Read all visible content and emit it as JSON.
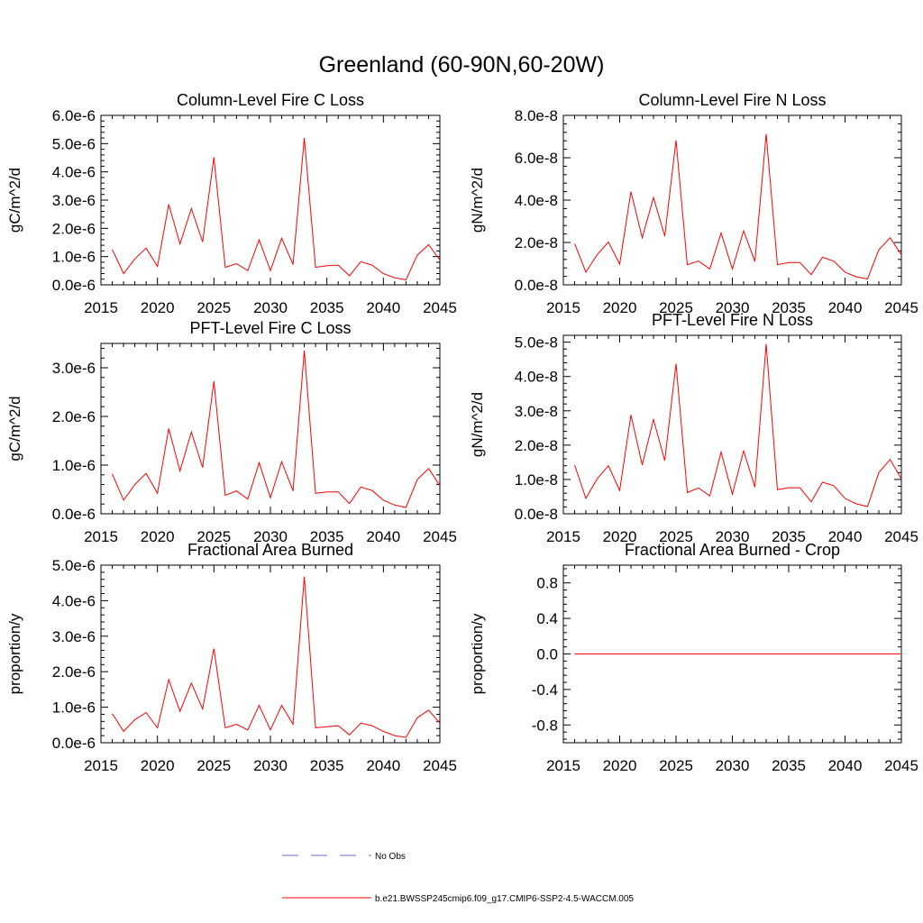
{
  "page": {
    "title": "Greenland (60-90N,60-20W)"
  },
  "chart_data": [
    {
      "type": "line",
      "title": "Column-Level Fire C Loss",
      "ylabel": "gC/m^2/d",
      "xlabel": "",
      "xlim": [
        2015,
        2045
      ],
      "ylim": [
        0,
        6e-06
      ],
      "x_ticks": [
        2015,
        2020,
        2025,
        2030,
        2035,
        2040,
        2045
      ],
      "x_tick_labels": [
        "2015",
        "2020",
        "2025",
        "2030",
        "2035",
        "2040",
        "2045"
      ],
      "y_ticks": [
        0,
        1e-06,
        2e-06,
        3e-06,
        4e-06,
        5e-06,
        6e-06
      ],
      "y_tick_labels": [
        "0.0e-6",
        "1.0e-6",
        "2.0e-6",
        "3.0e-6",
        "4.0e-6",
        "5.0e-6",
        "6.0e-6"
      ],
      "series": [
        {
          "name": "b.e21.BWSSP245cmip6.f09_g17.CMIP6-SSP2-4.5-WACCM.005",
          "color": "#ff0000",
          "x": [
            2016,
            2017,
            2018,
            2019,
            2020,
            2021,
            2022,
            2023,
            2024,
            2025,
            2026,
            2027,
            2028,
            2029,
            2030,
            2031,
            2032,
            2033,
            2034,
            2035,
            2036,
            2037,
            2038,
            2039,
            2040,
            2041,
            2042,
            2043,
            2044,
            2045
          ],
          "values": [
            1.25e-06,
            4e-07,
            9.2e-07,
            1.3e-06,
            6.5e-07,
            2.85e-06,
            1.45e-06,
            2.7e-06,
            1.52e-06,
            4.52e-06,
            6.2e-07,
            7.5e-07,
            5e-07,
            1.6e-06,
            5e-07,
            1.65e-06,
            7.2e-07,
            5.2e-06,
            6.2e-07,
            6.8e-07,
            7e-07,
            3.2e-07,
            8.2e-07,
            7e-07,
            4e-07,
            2.5e-07,
            1.8e-07,
            1.05e-06,
            1.42e-06,
            8.8e-07
          ]
        }
      ]
    },
    {
      "type": "line",
      "title": "Column-Level Fire N Loss",
      "ylabel": "gN/m^2/d",
      "xlabel": "",
      "xlim": [
        2015,
        2045
      ],
      "ylim": [
        0,
        8e-08
      ],
      "x_ticks": [
        2015,
        2020,
        2025,
        2030,
        2035,
        2040,
        2045
      ],
      "x_tick_labels": [
        "2015",
        "2020",
        "2025",
        "2030",
        "2035",
        "2040",
        "2045"
      ],
      "y_ticks": [
        0,
        2e-08,
        4e-08,
        6e-08,
        8e-08
      ],
      "y_tick_labels": [
        "0.0e-8",
        "2.0e-8",
        "4.0e-8",
        "6.0e-8",
        "8.0e-8"
      ],
      "series": [
        {
          "name": "b.e21.BWSSP245cmip6.f09_g17.CMIP6-SSP2-4.5-WACCM.005",
          "color": "#ff0000",
          "x": [
            2016,
            2017,
            2018,
            2019,
            2020,
            2021,
            2022,
            2023,
            2024,
            2025,
            2026,
            2027,
            2028,
            2029,
            2030,
            2031,
            2032,
            2033,
            2034,
            2035,
            2036,
            2037,
            2038,
            2039,
            2040,
            2041,
            2042,
            2043,
            2044,
            2045
          ],
          "values": [
            1.95e-08,
            6e-09,
            1.42e-08,
            2.02e-08,
            9.8e-09,
            4.4e-08,
            2.22e-08,
            4.12e-08,
            2.3e-08,
            6.82e-08,
            9.5e-09,
            1.12e-08,
            7.5e-09,
            2.45e-08,
            7.5e-09,
            2.55e-08,
            1.1e-08,
            7.12e-08,
            9.5e-09,
            1.05e-08,
            1.05e-08,
            4.8e-09,
            1.3e-08,
            1.12e-08,
            6e-09,
            3.8e-09,
            2.8e-09,
            1.65e-08,
            2.22e-08,
            1.42e-08
          ]
        }
      ]
    },
    {
      "type": "line",
      "title": "PFT-Level Fire C Loss",
      "ylabel": "gC/m^2/d",
      "xlabel": "",
      "xlim": [
        2015,
        2045
      ],
      "ylim": [
        0,
        3.5e-06
      ],
      "x_ticks": [
        2015,
        2020,
        2025,
        2030,
        2035,
        2040,
        2045
      ],
      "x_tick_labels": [
        "2015",
        "2020",
        "2025",
        "2030",
        "2035",
        "2040",
        "2045"
      ],
      "y_ticks": [
        0,
        1e-06,
        2e-06,
        3e-06
      ],
      "y_tick_labels": [
        "0.0e-6",
        "1.0e-6",
        "2.0e-6",
        "3.0e-6"
      ],
      "series": [
        {
          "name": "b.e21.BWSSP245cmip6.f09_g17.CMIP6-SSP2-4.5-WACCM.005",
          "color": "#ff0000",
          "x": [
            2016,
            2017,
            2018,
            2019,
            2020,
            2021,
            2022,
            2023,
            2024,
            2025,
            2026,
            2027,
            2028,
            2029,
            2030,
            2031,
            2032,
            2033,
            2034,
            2035,
            2036,
            2037,
            2038,
            2039,
            2040,
            2041,
            2042,
            2043,
            2044,
            2045
          ],
          "values": [
            8.2e-07,
            2.8e-07,
            6e-07,
            8.3e-07,
            4.2e-07,
            1.75e-06,
            8.8e-07,
            1.68e-06,
            9.5e-07,
            2.72e-06,
            3.8e-07,
            4.7e-07,
            3e-07,
            1.05e-06,
            3.3e-07,
            1.07e-06,
            4.7e-07,
            3.35e-06,
            4.2e-07,
            4.5e-07,
            4.5e-07,
            2.1e-07,
            5.5e-07,
            4.8e-07,
            2.8e-07,
            1.8e-07,
            1.3e-07,
            7e-07,
            9.3e-07,
            5.8e-07
          ]
        }
      ]
    },
    {
      "type": "line",
      "title": "PFT-Level Fire N Loss",
      "ylabel": "gN/m^2/d",
      "xlabel": "",
      "xlim": [
        2015,
        2045
      ],
      "ylim": [
        0,
        5.2e-08
      ],
      "x_ticks": [
        2015,
        2020,
        2025,
        2030,
        2035,
        2040,
        2045
      ],
      "x_tick_labels": [
        "2015",
        "2020",
        "2025",
        "2030",
        "2035",
        "2040",
        "2045"
      ],
      "y_ticks": [
        0,
        1e-08,
        2e-08,
        3e-08,
        4e-08,
        5e-08
      ],
      "y_tick_labels": [
        "0.0e-8",
        "1.0e-8",
        "2.0e-8",
        "3.0e-8",
        "4.0e-8",
        "5.0e-8"
      ],
      "series": [
        {
          "name": "b.e21.BWSSP245cmip6.f09_g17.CMIP6-SSP2-4.5-WACCM.005",
          "color": "#ff0000",
          "x": [
            2016,
            2017,
            2018,
            2019,
            2020,
            2021,
            2022,
            2023,
            2024,
            2025,
            2026,
            2027,
            2028,
            2029,
            2030,
            2031,
            2032,
            2033,
            2034,
            2035,
            2036,
            2037,
            2038,
            2039,
            2040,
            2041,
            2042,
            2043,
            2044,
            2045
          ],
          "values": [
            1.42e-08,
            4.5e-09,
            1.02e-08,
            1.4e-08,
            6.8e-09,
            2.88e-08,
            1.42e-08,
            2.75e-08,
            1.55e-08,
            4.37e-08,
            6.2e-09,
            7.5e-09,
            5.2e-09,
            1.8e-08,
            5.7e-09,
            1.83e-08,
            7.8e-09,
            4.95e-08,
            7e-09,
            7.6e-09,
            7.6e-09,
            3.5e-09,
            9.2e-09,
            8.2e-09,
            4.5e-09,
            2.9e-09,
            2.1e-09,
            1.2e-08,
            1.58e-08,
            1.02e-08
          ]
        }
      ]
    },
    {
      "type": "line",
      "title": "Fractional Area Burned",
      "ylabel": "proportion/y",
      "xlabel": "",
      "xlim": [
        2015,
        2045
      ],
      "ylim": [
        0,
        5e-06
      ],
      "x_ticks": [
        2015,
        2020,
        2025,
        2030,
        2035,
        2040,
        2045
      ],
      "x_tick_labels": [
        "2015",
        "2020",
        "2025",
        "2030",
        "2035",
        "2040",
        "2045"
      ],
      "y_ticks": [
        0,
        1e-06,
        2e-06,
        3e-06,
        4e-06,
        5e-06
      ],
      "y_tick_labels": [
        "0.0e-6",
        "1.0e-6",
        "2.0e-6",
        "3.0e-6",
        "4.0e-6",
        "5.0e-6"
      ],
      "series": [
        {
          "name": "b.e21.BWSSP245cmip6.f09_g17.CMIP6-SSP2-4.5-WACCM.005",
          "color": "#ff0000",
          "x": [
            2016,
            2017,
            2018,
            2019,
            2020,
            2021,
            2022,
            2023,
            2024,
            2025,
            2026,
            2027,
            2028,
            2029,
            2030,
            2031,
            2032,
            2033,
            2034,
            2035,
            2036,
            2037,
            2038,
            2039,
            2040,
            2041,
            2042,
            2043,
            2044,
            2045
          ],
          "values": [
            8.2e-07,
            3.2e-07,
            6.5e-07,
            8.5e-07,
            4.2e-07,
            1.78e-06,
            8.8e-07,
            1.68e-06,
            9.5e-07,
            2.65e-06,
            4.2e-07,
            5.2e-07,
            3.6e-07,
            1.05e-06,
            3.6e-07,
            1.05e-06,
            5.2e-07,
            4.68e-06,
            4.2e-07,
            4.5e-07,
            4.8e-07,
            2.2e-07,
            5.5e-07,
            4.8e-07,
            3.2e-07,
            2e-07,
            1.5e-07,
            7e-07,
            9.2e-07,
            5.5e-07
          ]
        }
      ]
    },
    {
      "type": "line",
      "title": "Fractional Area Burned - Crop",
      "ylabel": "proportion/y",
      "xlabel": "",
      "xlim": [
        2015,
        2045
      ],
      "ylim": [
        -1.0,
        1.0
      ],
      "x_ticks": [
        2015,
        2020,
        2025,
        2030,
        2035,
        2040,
        2045
      ],
      "x_tick_labels": [
        "2015",
        "2020",
        "2025",
        "2030",
        "2035",
        "2040",
        "2045"
      ],
      "y_ticks": [
        -0.8,
        -0.4,
        0.0,
        0.4,
        0.8
      ],
      "y_tick_labels": [
        "-0.8",
        "-0.4",
        "0.0",
        "0.4",
        "0.8"
      ],
      "series": [
        {
          "name": "b.e21.BWSSP245cmip6.f09_g17.CMIP6-SSP2-4.5-WACCM.005",
          "color": "#ff0000",
          "x": [
            2016,
            2017,
            2018,
            2019,
            2020,
            2021,
            2022,
            2023,
            2024,
            2025,
            2026,
            2027,
            2028,
            2029,
            2030,
            2031,
            2032,
            2033,
            2034,
            2035,
            2036,
            2037,
            2038,
            2039,
            2040,
            2041,
            2042,
            2043,
            2044,
            2045
          ],
          "values": [
            0,
            0,
            0,
            0,
            0,
            0,
            0,
            0,
            0,
            0,
            0,
            0,
            0,
            0,
            0,
            0,
            0,
            0,
            0,
            0,
            0,
            0,
            0,
            0,
            0,
            0,
            0,
            0,
            0,
            0
          ]
        }
      ]
    }
  ],
  "legend": [
    {
      "label": "No Obs",
      "color": "#6a6ad0",
      "dash": "dashed"
    },
    {
      "label": "b.e21.BWSSP245cmip6.f09_g17.CMIP6-SSP2-4.5-WACCM.005",
      "color": "#ff0000",
      "dash": "solid"
    }
  ]
}
